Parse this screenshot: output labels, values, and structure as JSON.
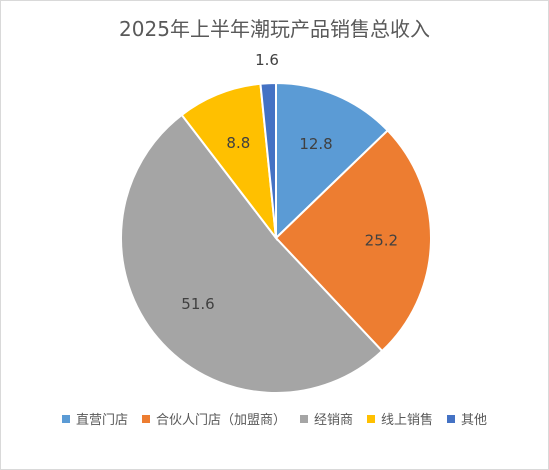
{
  "chart_data": {
    "type": "pie",
    "title": "2025年上半年潮玩产品销售总收入",
    "categories": [
      "直营门店",
      "合伙人门店（加盟商）",
      "经销商",
      "线上销售",
      "其他"
    ],
    "values": [
      12.8,
      25.2,
      51.6,
      8.8,
      1.6
    ],
    "data_labels": [
      "12.8",
      "25.2",
      "51.6",
      "8.8",
      "1.6"
    ],
    "colors": [
      "#5b9bd5",
      "#ed7d31",
      "#a5a5a5",
      "#ffc000",
      "#4472c4"
    ],
    "legend_position": "bottom"
  }
}
